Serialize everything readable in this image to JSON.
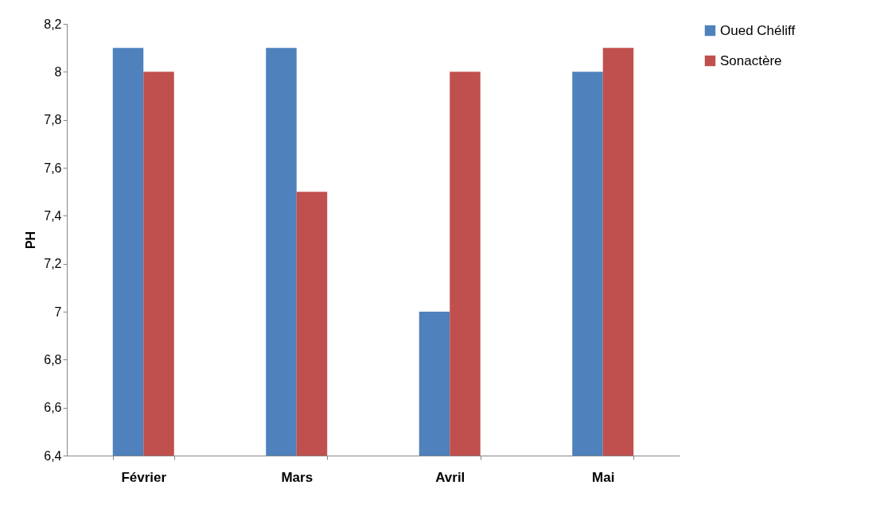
{
  "chart_data": {
    "type": "bar",
    "ylabel": "PH",
    "categories": [
      "Février",
      "Mars",
      "Avril",
      "Mai"
    ],
    "series": [
      {
        "name": "Oued Chéliff",
        "color": "#4f81bd",
        "values": [
          8.1,
          8.1,
          7.0,
          8.0
        ]
      },
      {
        "name": "Sonactère",
        "color": "#c0504d",
        "values": [
          8.0,
          7.5,
          8.0,
          8.1
        ]
      }
    ],
    "ylim": [
      6.4,
      8.2
    ],
    "yticks": [
      {
        "value": 6.4,
        "label": "6,4"
      },
      {
        "value": 6.6,
        "label": "6,6"
      },
      {
        "value": 6.8,
        "label": "6,8"
      },
      {
        "value": 7,
        "label": "7"
      },
      {
        "value": 7.2,
        "label": "7,2"
      },
      {
        "value": 7.4,
        "label": "7,4"
      },
      {
        "value": 7.6,
        "label": "7,6"
      },
      {
        "value": 7.8,
        "label": "7,8"
      },
      {
        "value": 8,
        "label": "8"
      },
      {
        "value": 8.2,
        "label": "8,2"
      }
    ],
    "grid": false,
    "legend": "right"
  }
}
